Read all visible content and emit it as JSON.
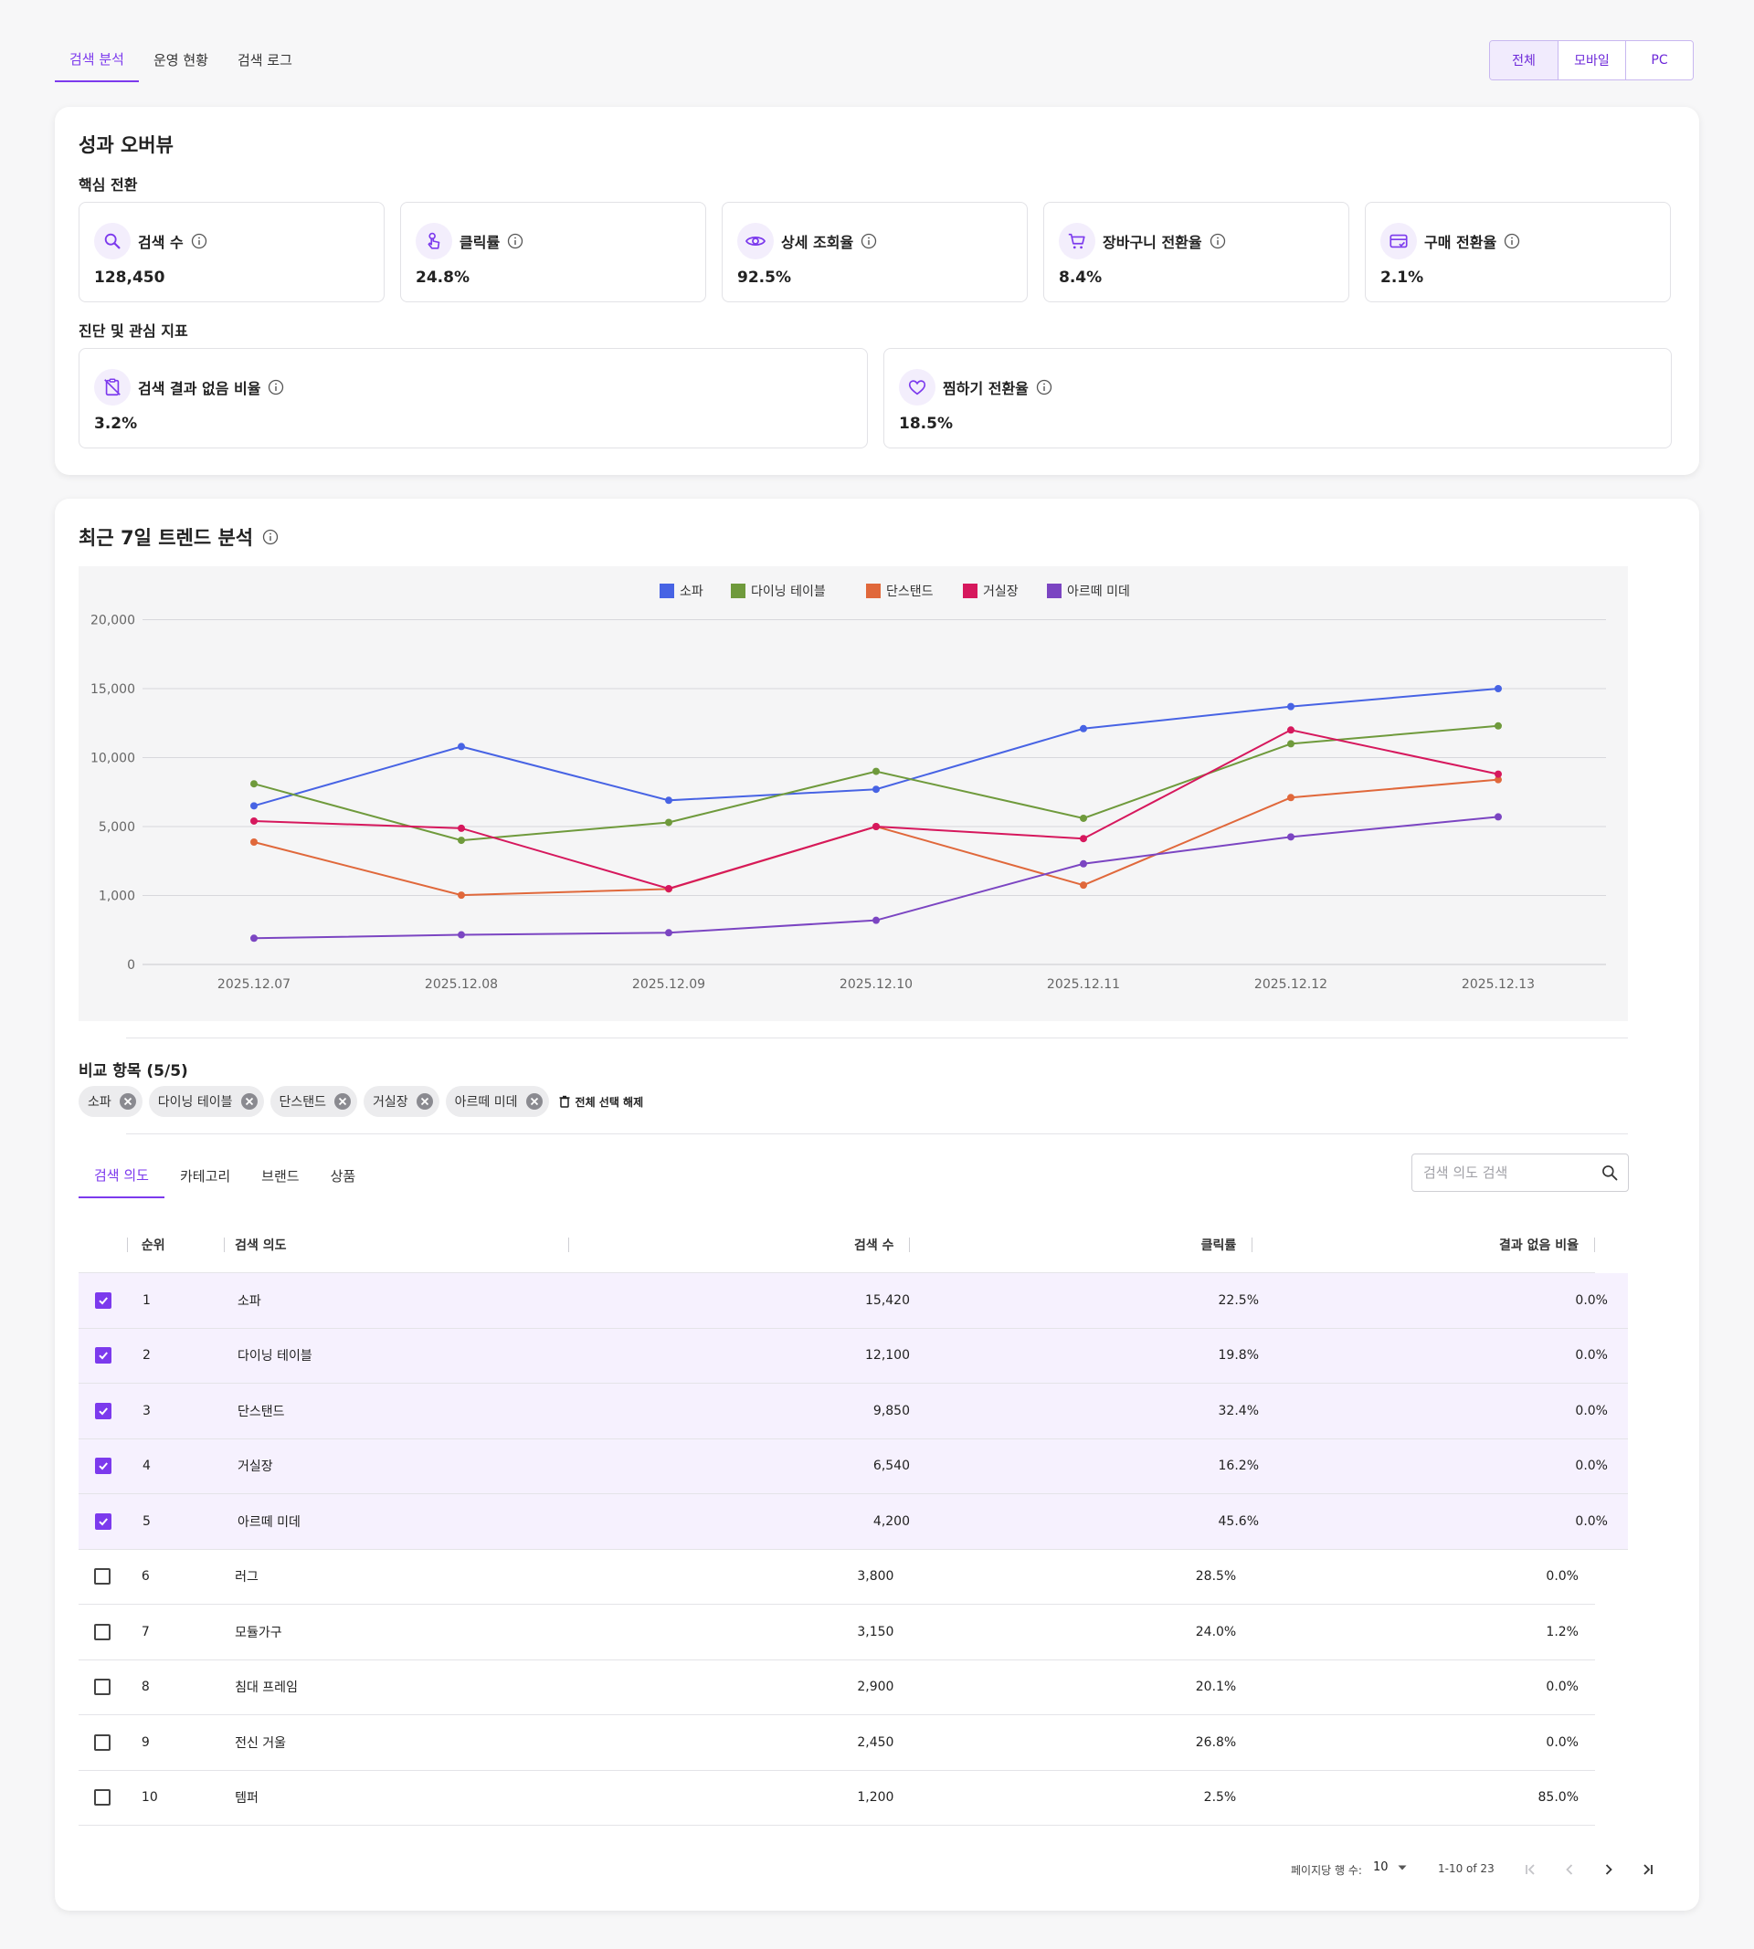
{
  "top_tabs": [
    {
      "label": "검색 분석",
      "active": true
    },
    {
      "label": "운영 현황",
      "active": false
    },
    {
      "label": "검색 로그",
      "active": false
    }
  ],
  "device_filter": [
    {
      "label": "전체",
      "active": true
    },
    {
      "label": "모바일",
      "active": false
    },
    {
      "label": "PC",
      "active": false
    }
  ],
  "overview": {
    "title": "성과 오버뷰",
    "core_section": "핵심 전환",
    "core_metrics": [
      {
        "icon": "search-icon",
        "label": "검색 수",
        "value": "128,450"
      },
      {
        "icon": "tap-icon",
        "label": "클릭률",
        "value": "24.8%"
      },
      {
        "icon": "eye-icon",
        "label": "상세 조회율",
        "value": "92.5%"
      },
      {
        "icon": "cart-icon",
        "label": "장바구니 전환율",
        "value": "8.4%"
      },
      {
        "icon": "card-icon",
        "label": "구매 전환율",
        "value": "2.1%"
      }
    ],
    "diag_section": "진단 및 관심 지표",
    "diag_metrics": [
      {
        "icon": "no-result-icon",
        "label": "검색 결과 없음 비율",
        "value": "3.2%"
      },
      {
        "icon": "heart-icon",
        "label": "찜하기 전환율",
        "value": "18.5%"
      }
    ]
  },
  "trend": {
    "title": "최근 7일 트렌드 분석",
    "compare_title": "비교 항목 (5/5)",
    "chips": [
      "소파",
      "다이닝 테이블",
      "단스탠드",
      "거실장",
      "아르떼 미데"
    ],
    "clear_all_label": "전체 선택 해제"
  },
  "chart_data": {
    "type": "line",
    "x": [
      "2025.12.07",
      "2025.12.08",
      "2025.12.09",
      "2025.12.10",
      "2025.12.11",
      "2025.12.12",
      "2025.12.13"
    ],
    "y_ticks": [
      "0",
      "1,000",
      "5,000",
      "10,000",
      "15,000",
      "20,000"
    ],
    "y_scale_note": "non-linear axis with uneven tick labels",
    "grid": true,
    "legend_position": "top-center",
    "series": [
      {
        "name": "소파",
        "color": "#4763e4",
        "values": [
          6500,
          10800,
          6900,
          7700,
          12100,
          13700,
          15000
        ]
      },
      {
        "name": "다이닝 테이블",
        "color": "#6f9a3c",
        "values": [
          8100,
          4200,
          5300,
          9000,
          5600,
          11000,
          12300
        ]
      },
      {
        "name": "단스탠드",
        "color": "#e0683b",
        "values": [
          4100,
          1020,
          1380,
          5000,
          1600,
          7100,
          8400
        ]
      },
      {
        "name": "거실장",
        "color": "#d6185d",
        "values": [
          5400,
          4900,
          1400,
          5000,
          4300,
          12000,
          8800
        ]
      },
      {
        "name": "아르떼 미데",
        "color": "#7b45c2",
        "values": [
          380,
          430,
          460,
          640,
          2840,
          4400,
          5700
        ]
      }
    ]
  },
  "table": {
    "tabs": [
      {
        "label": "검색 의도",
        "active": true
      },
      {
        "label": "카테고리",
        "active": false
      },
      {
        "label": "브랜드",
        "active": false
      },
      {
        "label": "상품",
        "active": false
      }
    ],
    "search_placeholder": "검색 의도 검색",
    "columns": [
      "순위",
      "검색 의도",
      "검색 수",
      "클릭률",
      "결과 없음 비율"
    ],
    "rows": [
      {
        "checked": true,
        "rank": "1",
        "intent": "소파",
        "searches": "15,420",
        "ctr": "22.5%",
        "no_result": "0.0%"
      },
      {
        "checked": true,
        "rank": "2",
        "intent": "다이닝 테이블",
        "searches": "12,100",
        "ctr": "19.8%",
        "no_result": "0.0%"
      },
      {
        "checked": true,
        "rank": "3",
        "intent": "단스탠드",
        "searches": "9,850",
        "ctr": "32.4%",
        "no_result": "0.0%"
      },
      {
        "checked": true,
        "rank": "4",
        "intent": "거실장",
        "searches": "6,540",
        "ctr": "16.2%",
        "no_result": "0.0%"
      },
      {
        "checked": true,
        "rank": "5",
        "intent": "아르떼 미데",
        "searches": "4,200",
        "ctr": "45.6%",
        "no_result": "0.0%"
      },
      {
        "checked": false,
        "rank": "6",
        "intent": "러그",
        "searches": "3,800",
        "ctr": "28.5%",
        "no_result": "0.0%"
      },
      {
        "checked": false,
        "rank": "7",
        "intent": "모듈가구",
        "searches": "3,150",
        "ctr": "24.0%",
        "no_result": "1.2%"
      },
      {
        "checked": false,
        "rank": "8",
        "intent": "침대 프레임",
        "searches": "2,900",
        "ctr": "20.1%",
        "no_result": "0.0%"
      },
      {
        "checked": false,
        "rank": "9",
        "intent": "전신 거울",
        "searches": "2,450",
        "ctr": "26.8%",
        "no_result": "0.0%"
      },
      {
        "checked": false,
        "rank": "10",
        "intent": "템퍼",
        "searches": "1,200",
        "ctr": "2.5%",
        "no_result": "85.0%"
      }
    ],
    "pagination": {
      "rows_per_page_label": "페이지당 행 수:",
      "rows_per_page": "10",
      "range_text": "1-10 of 23"
    }
  }
}
